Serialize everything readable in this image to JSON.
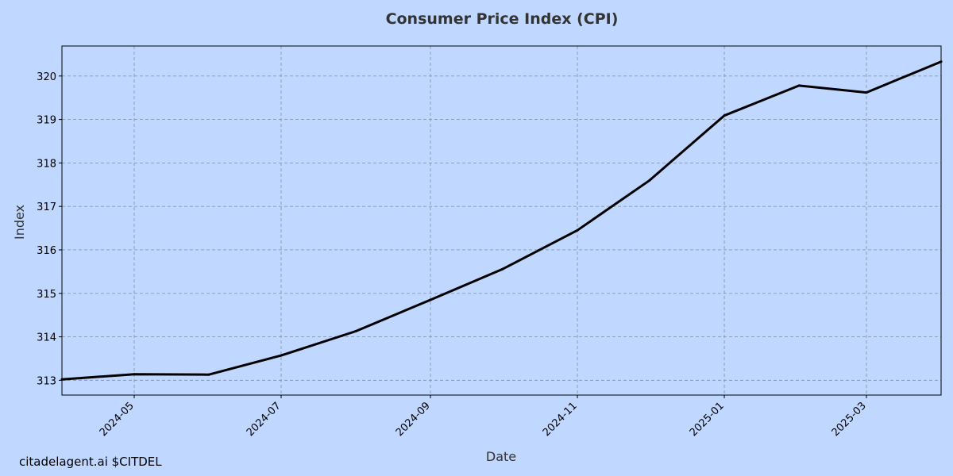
{
  "chart_data": {
    "type": "line",
    "title": "Consumer Price Index (CPI)",
    "xlabel": "Date",
    "ylabel": "Index",
    "x": [
      "2024-04-01",
      "2024-05-01",
      "2024-06-01",
      "2024-07-01",
      "2024-08-01",
      "2024-09-01",
      "2024-10-01",
      "2024-11-01",
      "2024-12-01",
      "2025-01-01",
      "2025-02-01",
      "2025-03-01",
      "2025-04-01"
    ],
    "series": [
      {
        "name": "CPI",
        "values": [
          313.02,
          313.14,
          313.13,
          313.57,
          314.13,
          314.85,
          315.56,
          316.45,
          317.6,
          319.09,
          319.78,
          319.62,
          320.33
        ]
      }
    ],
    "xticks": [
      "2024-05-01",
      "2024-07-01",
      "2024-09-01",
      "2024-11-01",
      "2025-01-01",
      "2025-03-01"
    ],
    "xtick_labels": [
      "2024-05",
      "2024-07",
      "2024-09",
      "2024-11",
      "2025-01",
      "2025-03"
    ],
    "xlim": [
      "2024-04-01",
      "2025-04-01"
    ],
    "yticks": [
      313,
      314,
      315,
      316,
      317,
      318,
      319,
      320
    ],
    "ylim": [
      312.66,
      320.69
    ],
    "grid": true,
    "colors": {
      "background": "#c0d7ff",
      "line": "#000000",
      "grid": "#8899aa",
      "title": "#333333",
      "axis_label": "#333333"
    }
  },
  "footer": {
    "text": "citadelagent.ai $CITDEL"
  }
}
